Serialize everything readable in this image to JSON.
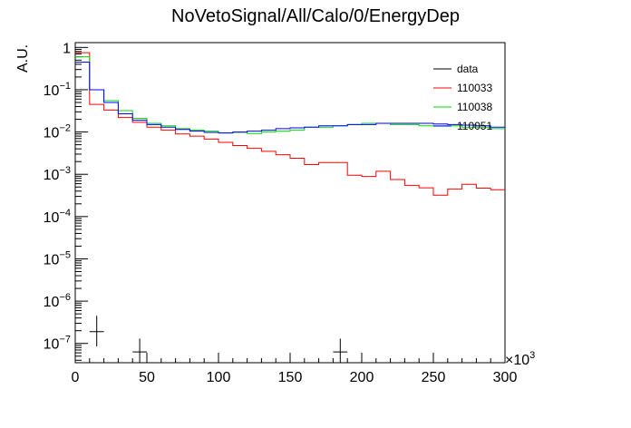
{
  "chart_data": {
    "type": "line",
    "title": "NoVetoSignal/All/Calo/0/EnergyDep",
    "xlabel": "",
    "ylabel": "A.U.",
    "x_multiplier_label": "×10",
    "x_multiplier_exponent": "3",
    "xlim": [
      0,
      300
    ],
    "ylim": [
      3.5e-08,
      1.3
    ],
    "y_scale": "log",
    "x_ticks": [
      0,
      50,
      100,
      150,
      200,
      250,
      300
    ],
    "y_ticks": [
      {
        "value": 1e-07,
        "base": "10",
        "exp": "−7"
      },
      {
        "value": 1e-06,
        "base": "10",
        "exp": "−6"
      },
      {
        "value": 1e-05,
        "base": "10",
        "exp": "−5"
      },
      {
        "value": 0.0001,
        "base": "10",
        "exp": "−4"
      },
      {
        "value": 0.001,
        "base": "10",
        "exp": "−3"
      },
      {
        "value": 0.01,
        "base": "10",
        "exp": "−2"
      },
      {
        "value": 0.1,
        "base": "10",
        "exp": "−1"
      },
      {
        "value": 1,
        "base": "1",
        "exp": ""
      }
    ],
    "bin_edges": [
      0,
      10,
      20,
      30,
      40,
      50,
      60,
      70,
      80,
      90,
      100,
      110,
      120,
      130,
      140,
      150,
      160,
      170,
      180,
      190,
      200,
      210,
      220,
      230,
      240,
      250,
      260,
      270,
      280,
      290,
      300
    ],
    "legend_position": "top-right",
    "series": [
      {
        "name": "data",
        "color": "#000000",
        "kind": "points",
        "points": [
          {
            "x": 15,
            "y": 1.9e-07,
            "xerr": 5,
            "ylo": 8.5e-08,
            "yhi": 4.5e-07
          },
          {
            "x": 45,
            "y": 6.3e-08,
            "xerr": 5,
            "ylo": 2e-08,
            "yhi": 1.3e-07
          },
          {
            "x": 185,
            "y": 6.3e-08,
            "xerr": 5,
            "ylo": 2e-08,
            "yhi": 1.3e-07
          }
        ]
      },
      {
        "name": "110033",
        "color": "#ff0000",
        "kind": "hist",
        "values": [
          0.75,
          0.045,
          0.033,
          0.022,
          0.017,
          0.013,
          0.011,
          0.009,
          0.008,
          0.0068,
          0.0057,
          0.0048,
          0.0041,
          0.0035,
          0.0029,
          0.0024,
          0.0017,
          0.0019,
          0.0019,
          0.00095,
          0.00089,
          0.00118,
          0.00075,
          0.00055,
          0.00048,
          0.00032,
          0.00045,
          0.00058,
          0.00047,
          0.00043
        ]
      },
      {
        "name": "110038",
        "color": "#00dd00",
        "kind": "hist",
        "values": [
          0.6,
          0.1,
          0.055,
          0.032,
          0.021,
          0.016,
          0.014,
          0.012,
          0.011,
          0.0105,
          0.0095,
          0.0098,
          0.0092,
          0.01,
          0.0105,
          0.011,
          0.013,
          0.013,
          0.014,
          0.015,
          0.016,
          0.016,
          0.015,
          0.015,
          0.014,
          0.014,
          0.014,
          0.013,
          0.013,
          0.012
        ]
      },
      {
        "name": "110051",
        "color": "#0000ff",
        "kind": "hist",
        "values": [
          0.45,
          0.1,
          0.05,
          0.027,
          0.019,
          0.015,
          0.013,
          0.0115,
          0.0105,
          0.0098,
          0.0095,
          0.01,
          0.0105,
          0.011,
          0.012,
          0.0125,
          0.013,
          0.014,
          0.014,
          0.015,
          0.015,
          0.016,
          0.016,
          0.016,
          0.016,
          0.0155,
          0.015,
          0.0145,
          0.014,
          0.013
        ]
      }
    ]
  }
}
